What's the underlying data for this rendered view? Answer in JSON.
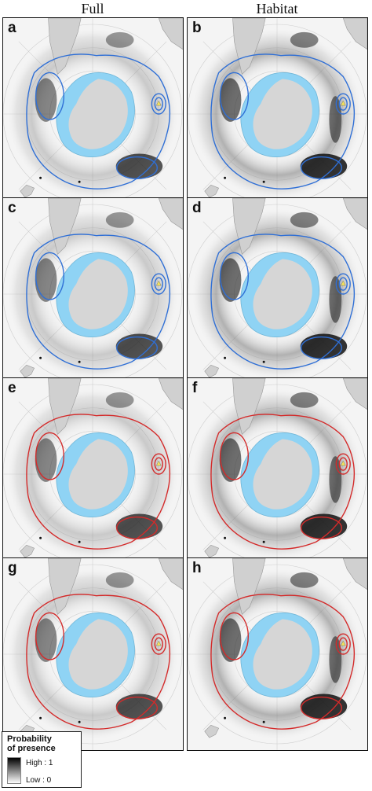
{
  "columns": [
    "Full",
    "Habitat"
  ],
  "panels": [
    {
      "letter": "a",
      "contour_color": "#2f6fd6"
    },
    {
      "letter": "b",
      "contour_color": "#2f6fd6"
    },
    {
      "letter": "c",
      "contour_color": "#2f6fd6"
    },
    {
      "letter": "d",
      "contour_color": "#2f6fd6"
    },
    {
      "letter": "e",
      "contour_color": "#d42a2a"
    },
    {
      "letter": "f",
      "contour_color": "#d42a2a"
    },
    {
      "letter": "g",
      "contour_color": "#d42a2a"
    },
    {
      "letter": "h",
      "contour_color": "#d42a2a"
    }
  ],
  "colors": {
    "antarctica": "#d6d6d6",
    "ice_shelf": "#8fd3f4",
    "land": "#d0d0d0",
    "blue_contour": "#2f6fd6",
    "red_contour": "#d42a2a",
    "marker": "#f5e25a"
  },
  "legend": {
    "title_line1": "Probability",
    "title_line2": "of presence",
    "high_label": "High : 1",
    "low_label": "Low : 0"
  }
}
